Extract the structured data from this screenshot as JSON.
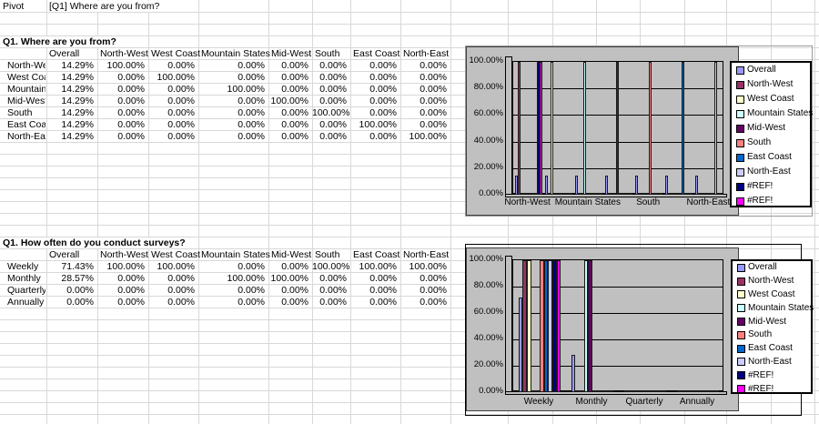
{
  "sheet": {
    "cell_a1": "Pivot",
    "cell_b1": "[Q1] Where are you from?",
    "colors": {
      "grid_line": "#d8d8d8",
      "chart_area_bg": "#c0c0c0",
      "legend_bg": "#ffffff"
    },
    "table1": {
      "title": "Q1. Where are you from?",
      "columns": [
        "Overall",
        "North-West",
        "West Coast",
        "Mountain States",
        "Mid-West",
        "South",
        "East Coast",
        "North-East"
      ],
      "rows": [
        {
          "label": "North-West",
          "values": [
            "14.29%",
            "100.00%",
            "0.00%",
            "0.00%",
            "0.00%",
            "0.00%",
            "0.00%",
            "0.00%"
          ]
        },
        {
          "label": "West Coast",
          "values": [
            "14.29%",
            "0.00%",
            "100.00%",
            "0.00%",
            "0.00%",
            "0.00%",
            "0.00%",
            "0.00%"
          ]
        },
        {
          "label": "Mountain States",
          "values": [
            "14.29%",
            "0.00%",
            "0.00%",
            "100.00%",
            "0.00%",
            "0.00%",
            "0.00%",
            "0.00%"
          ]
        },
        {
          "label": "Mid-West",
          "values": [
            "14.29%",
            "0.00%",
            "0.00%",
            "0.00%",
            "100.00%",
            "0.00%",
            "0.00%",
            "0.00%"
          ]
        },
        {
          "label": "South",
          "values": [
            "14.29%",
            "0.00%",
            "0.00%",
            "0.00%",
            "0.00%",
            "100.00%",
            "0.00%",
            "0.00%"
          ]
        },
        {
          "label": "East Coast",
          "values": [
            "14.29%",
            "0.00%",
            "0.00%",
            "0.00%",
            "0.00%",
            "0.00%",
            "100.00%",
            "0.00%"
          ]
        },
        {
          "label": "North-East",
          "values": [
            "14.29%",
            "0.00%",
            "0.00%",
            "0.00%",
            "0.00%",
            "0.00%",
            "0.00%",
            "100.00%"
          ]
        }
      ]
    },
    "table2": {
      "title": "Q1. How often do you conduct surveys?",
      "columns": [
        "Overall",
        "North-West",
        "West Coast",
        "Mountain States",
        "Mid-West",
        "South",
        "East Coast",
        "North-East"
      ],
      "rows": [
        {
          "label": "Weekly",
          "values": [
            "71.43%",
            "100.00%",
            "100.00%",
            "0.00%",
            "0.00%",
            "100.00%",
            "100.00%",
            "100.00%"
          ]
        },
        {
          "label": "Monthly",
          "values": [
            "28.57%",
            "0.00%",
            "0.00%",
            "100.00%",
            "100.00%",
            "0.00%",
            "0.00%",
            "0.00%"
          ]
        },
        {
          "label": "Quarterly",
          "values": [
            "0.00%",
            "0.00%",
            "0.00%",
            "0.00%",
            "0.00%",
            "0.00%",
            "0.00%",
            "0.00%"
          ]
        },
        {
          "label": "Annually",
          "values": [
            "0.00%",
            "0.00%",
            "0.00%",
            "0.00%",
            "0.00%",
            "0.00%",
            "0.00%",
            "0.00%"
          ]
        }
      ]
    }
  },
  "chart_data": [
    {
      "type": "bar",
      "title": "",
      "categories": [
        "North-West",
        "West Coast",
        "Mountain States",
        "Mid-West",
        "South",
        "East Coast",
        "North-East"
      ],
      "x_tick_labels_shown": [
        "North-West",
        "Mountain States",
        "South",
        "North-East"
      ],
      "y_ticks": [
        "100.00%",
        "80.00%",
        "60.00%",
        "40.00%",
        "20.00%",
        "0.00%"
      ],
      "ylim": [
        0,
        100
      ],
      "grid": true,
      "legend_position": "right",
      "series": [
        {
          "name": "Overall",
          "color": "#9999FF",
          "values": [
            14.29,
            14.29,
            14.29,
            14.29,
            14.29,
            14.29,
            14.29
          ]
        },
        {
          "name": "North-West",
          "color": "#993366",
          "values": [
            100,
            0,
            0,
            0,
            0,
            0,
            0
          ]
        },
        {
          "name": "West Coast",
          "color": "#FFFFCC",
          "values": [
            0,
            100,
            0,
            0,
            0,
            0,
            0
          ]
        },
        {
          "name": "Mountain States",
          "color": "#CCFFFF",
          "values": [
            0,
            0,
            100,
            0,
            0,
            0,
            0
          ]
        },
        {
          "name": "Mid-West",
          "color": "#660066",
          "values": [
            0,
            0,
            0,
            100,
            0,
            0,
            0
          ]
        },
        {
          "name": "South",
          "color": "#FF8080",
          "values": [
            0,
            0,
            0,
            0,
            100,
            0,
            0
          ]
        },
        {
          "name": "East Coast",
          "color": "#0066CC",
          "values": [
            0,
            0,
            0,
            0,
            0,
            100,
            0
          ]
        },
        {
          "name": "North-East",
          "color": "#CCCCFF",
          "values": [
            0,
            0,
            0,
            0,
            0,
            0,
            100
          ]
        },
        {
          "name": "#REF!",
          "color": "#000080",
          "values": [
            100,
            0,
            0,
            0,
            0,
            0,
            0
          ]
        },
        {
          "name": "#REF!",
          "color": "#FF00FF",
          "values": [
            100,
            0,
            0,
            0,
            0,
            0,
            0
          ]
        }
      ]
    },
    {
      "type": "bar",
      "title": "",
      "categories": [
        "Weekly",
        "Monthly",
        "Quarterly",
        "Annually"
      ],
      "x_tick_labels_shown": [
        "Weekly",
        "Monthly",
        "Quarterly",
        "Annually"
      ],
      "y_ticks": [
        "100.00%",
        "80.00%",
        "60.00%",
        "40.00%",
        "20.00%",
        "0.00%"
      ],
      "ylim": [
        0,
        100
      ],
      "grid": true,
      "legend_position": "right",
      "series": [
        {
          "name": "Overall",
          "color": "#9999FF",
          "values": [
            71.43,
            28.57,
            0,
            0
          ]
        },
        {
          "name": "North-West",
          "color": "#993366",
          "values": [
            100,
            0,
            0,
            0
          ]
        },
        {
          "name": "West Coast",
          "color": "#FFFFCC",
          "values": [
            100,
            0,
            0,
            0
          ]
        },
        {
          "name": "Mountain States",
          "color": "#CCFFFF",
          "values": [
            0,
            100,
            0,
            0
          ]
        },
        {
          "name": "Mid-West",
          "color": "#660066",
          "values": [
            0,
            100,
            0,
            0
          ]
        },
        {
          "name": "South",
          "color": "#FF8080",
          "values": [
            100,
            0,
            0,
            0
          ]
        },
        {
          "name": "East Coast",
          "color": "#0066CC",
          "values": [
            100,
            0,
            0,
            0
          ]
        },
        {
          "name": "North-East",
          "color": "#CCCCFF",
          "values": [
            100,
            0,
            0,
            0
          ]
        },
        {
          "name": "#REF!",
          "color": "#000080",
          "values": [
            100,
            0,
            0,
            0
          ]
        },
        {
          "name": "#REF!",
          "color": "#FF00FF",
          "values": [
            100,
            0,
            0,
            0
          ]
        }
      ]
    }
  ]
}
